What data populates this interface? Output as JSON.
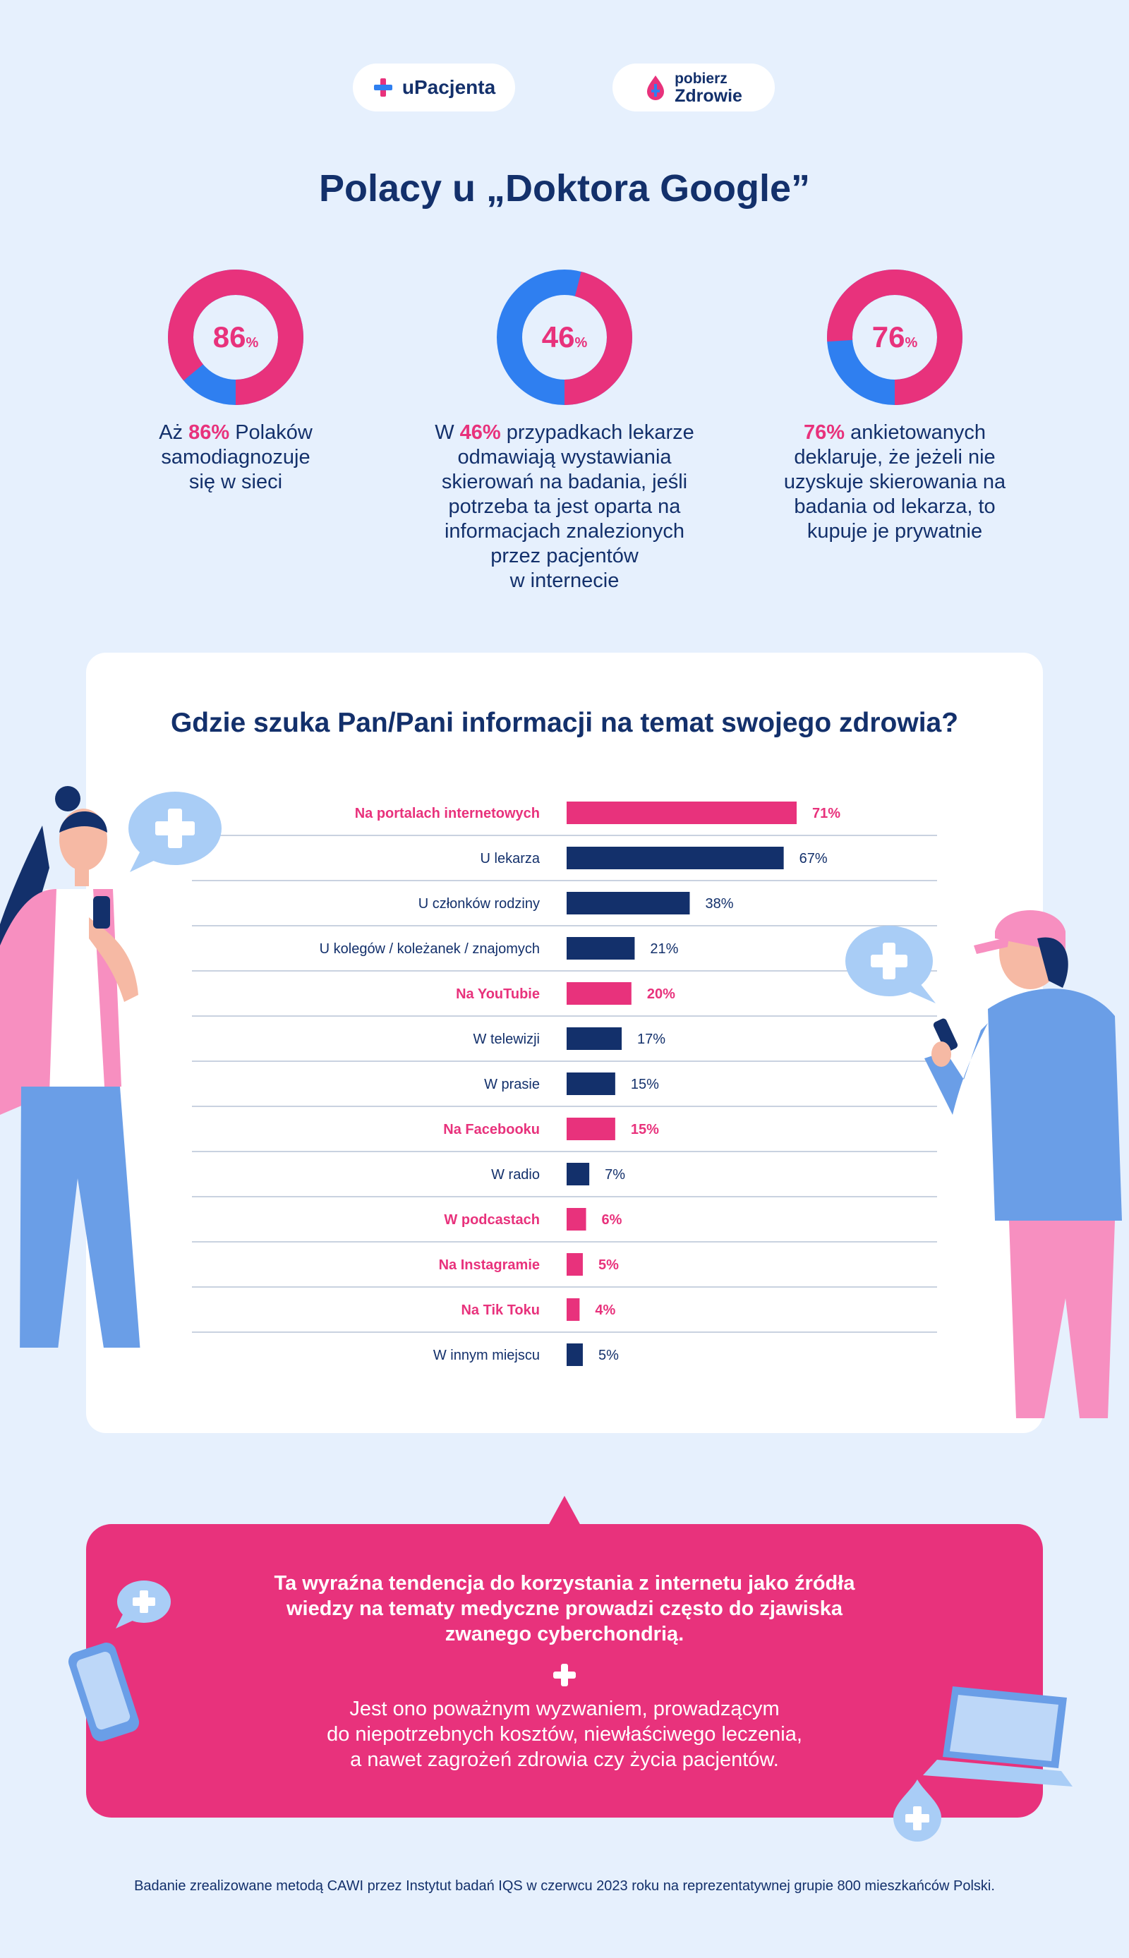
{
  "logos": {
    "left": "uPacjenta",
    "right_top": "pobierz",
    "right_bottom": "Zdrowie"
  },
  "title": "Polacy u „Doktora Google”",
  "stats": [
    {
      "value": 86,
      "label": "86",
      "pct": "%",
      "lines": [
        [
          "Aż ",
          "86%",
          " Polaków"
        ],
        [
          "samodiagnozuje"
        ],
        [
          "się w sieci"
        ]
      ]
    },
    {
      "value": 46,
      "label": "46",
      "pct": "%",
      "lines": [
        [
          "W ",
          "46%",
          " przypadkach lekarze"
        ],
        [
          "odmawiają wystawiania"
        ],
        [
          "skierowań na badania, jeśli"
        ],
        [
          "potrzeba ta jest oparta na"
        ],
        [
          "informacjach znalezionych"
        ],
        [
          "przez pacjentów"
        ],
        [
          "w internecie"
        ]
      ]
    },
    {
      "value": 76,
      "label": "76",
      "pct": "%",
      "lines": [
        [
          "",
          "76%",
          " ankietowanych"
        ],
        [
          "deklaruje, że jeżeli nie"
        ],
        [
          "uzyskuje skierowania na"
        ],
        [
          "badania od lekarza, to"
        ],
        [
          "kupuje je prywatnie"
        ]
      ]
    }
  ],
  "chart_data": {
    "type": "bar",
    "orientation": "horizontal",
    "title": "Gdzie szuka Pan/Pani informacji na temat swojego zdrowia?",
    "categories": [
      "Na portalach internetowych",
      "U lekarza",
      "U członków rodziny",
      "U kolegów / koleżanek / znajomych",
      "Na YouTubie",
      "W telewizji",
      "W prasie",
      "Na Facebooku",
      "W radio",
      "W podcastach",
      "Na Instagramie",
      "Na Tik Toku",
      "W innym miejscu"
    ],
    "values": [
      71,
      67,
      38,
      21,
      20,
      17,
      15,
      15,
      7,
      6,
      5,
      4,
      5
    ],
    "value_labels": [
      "71%",
      "67%",
      "38%",
      "21%",
      "20%",
      "17%",
      "15%",
      "15%",
      "7%",
      "6%",
      "5%",
      "4%",
      "5%"
    ],
    "highlight": [
      true,
      false,
      false,
      false,
      true,
      false,
      false,
      true,
      false,
      true,
      true,
      true,
      false
    ],
    "xlim": [
      0,
      71
    ]
  },
  "banner": {
    "bold_lines": [
      "Ta wyraźna tendencja do korzystania z internetu jako źródła",
      "wiedzy na tematy medyczne prowadzi często do zjawiska",
      "zwanego cyberchondrią."
    ],
    "lines": [
      "Jest ono poważnym wyzwaniem, prowadzącym",
      "do niepotrzebnych kosztów, niewłaściwego leczenia,",
      "a nawet zagrożeń zdrowia czy życia pacjentów."
    ]
  },
  "footer": "Badanie zrealizowane metodą CAWI przez Instytut badań IQS w czerwcu 2023 roku na reprezentatywnej grupie 800 mieszkańców Polski.",
  "colors": {
    "pink": "#e8327c",
    "navy": "#13306b",
    "blue": "#2f7ff0",
    "bg": "#e6f0fd",
    "grid": "#b7c3d6"
  }
}
